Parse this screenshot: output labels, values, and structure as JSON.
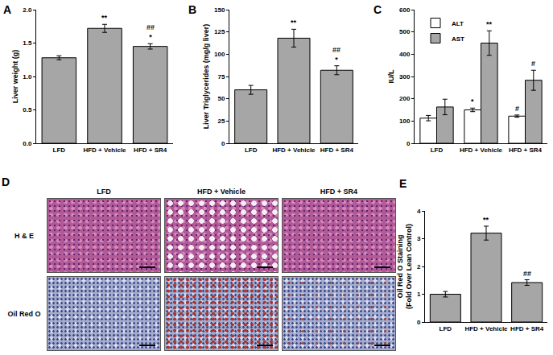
{
  "chart_data": [
    {
      "type": "bar",
      "label": "A",
      "ylabel": [
        "Liver weight (g)"
      ],
      "categories": [
        "LFD",
        "HFD + Vehicle",
        "HFD + SR4"
      ],
      "values": [
        1.28,
        1.72,
        1.45
      ],
      "errors": [
        0.03,
        0.06,
        0.04
      ],
      "annotations": [
        null,
        "**",
        [
          "##",
          "*"
        ]
      ],
      "color": "#a6a6a6",
      "ylim": [
        0,
        2
      ],
      "yticks": [
        {
          "value": 0,
          "label": "0.0"
        },
        0.5,
        {
          "value": 1,
          "label": "1.0"
        },
        1.5,
        {
          "value": 2,
          "label": "2.0"
        }
      ],
      "grid": false
    },
    {
      "type": "bar",
      "label": "B",
      "ylabel": [
        "Liver Triglycerides (mg/g liver)"
      ],
      "categories": [
        "LFD",
        "HFD + Vehicle",
        "HFD + SR4"
      ],
      "values": [
        60,
        118,
        82
      ],
      "errors": [
        5,
        10,
        5
      ],
      "annotations": [
        null,
        "**",
        [
          "##",
          "*"
        ]
      ],
      "color": "#a6a6a6",
      "ylim": [
        0,
        150
      ],
      "yticks": [
        0,
        25,
        50,
        75,
        100,
        125,
        150
      ],
      "grid": false
    },
    {
      "type": "bar",
      "label": "C",
      "ylabel": [
        "IU/L"
      ],
      "categories": [
        "LFD",
        "HFD + Vehicle",
        "HFD + SR4"
      ],
      "series": [
        {
          "name": "ALT",
          "color": "#ffffff",
          "values": [
            113,
            150,
            122
          ],
          "errors": [
            12,
            8,
            5
          ],
          "annotations": [
            null,
            "*",
            "#"
          ]
        },
        {
          "name": "AST",
          "color": "#a6a6a6",
          "values": [
            163,
            450,
            283
          ],
          "errors": [
            35,
            55,
            45
          ],
          "annotations": [
            null,
            "**",
            "#"
          ]
        }
      ],
      "legend": "upper left",
      "ylim": [
        0,
        600
      ],
      "yticks": [
        0,
        100,
        200,
        300,
        400,
        500,
        600
      ],
      "grid": false
    },
    {
      "type": "image_grid",
      "label": "D",
      "columns": [
        "LFD",
        "HFD + Vehicle",
        "HFD + SR4"
      ],
      "rows": [
        "H & E",
        "Oil Red O"
      ]
    },
    {
      "type": "bar",
      "label": "E",
      "ylabel": [
        "Oil Red O Staining",
        "(Fold Over Lean Control)"
      ],
      "categories": [
        "LFD",
        "HFD + Vehicle",
        "HFD + SR4"
      ],
      "values": [
        1.0,
        3.2,
        1.42
      ],
      "errors": [
        0.1,
        0.25,
        0.1
      ],
      "annotations": [
        null,
        "**",
        "##"
      ],
      "color": "#a6a6a6",
      "ylim": [
        0,
        4
      ],
      "yticks": [
        0,
        1,
        2,
        3,
        4
      ],
      "grid": false
    }
  ]
}
